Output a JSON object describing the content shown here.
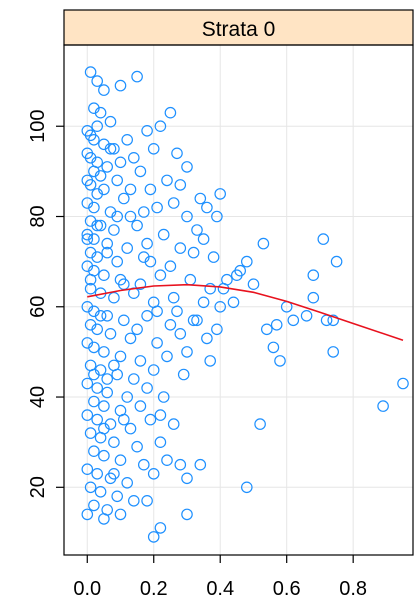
{
  "chart_data": {
    "type": "scatter",
    "title": "Strata 0",
    "xlabel": "",
    "ylabel": "",
    "xlim": [
      -0.07,
      0.98
    ],
    "ylim": [
      5,
      118
    ],
    "x_ticks": [
      0.0,
      0.2,
      0.4,
      0.6,
      0.8
    ],
    "x_tick_labels": [
      "0.0",
      "0.2",
      "0.4",
      "0.6",
      "0.8"
    ],
    "y_ticks": [
      20,
      40,
      60,
      80,
      100
    ],
    "y_tick_labels": [
      "20",
      "40",
      "60",
      "80",
      "100"
    ],
    "grid": true,
    "legend": "none",
    "colors": {
      "points": "#1E90FF",
      "fit": "#E8121E",
      "strip": "#FFE4C4",
      "grid": "#E6E6E6",
      "axis": "#000000"
    },
    "series": [
      {
        "kind": "points",
        "points": [
          [
            0.01,
            112
          ],
          [
            0.03,
            110
          ],
          [
            0.05,
            108
          ],
          [
            0.1,
            109
          ],
          [
            0.15,
            111
          ],
          [
            0.02,
            104
          ],
          [
            0.04,
            103
          ],
          [
            0.07,
            101
          ],
          [
            0.03,
            100
          ],
          [
            0.0,
            99
          ],
          [
            0.01,
            98
          ],
          [
            0.02,
            97
          ],
          [
            0.05,
            96
          ],
          [
            0.08,
            95
          ],
          [
            0.12,
            97
          ],
          [
            0.18,
            99
          ],
          [
            0.22,
            100
          ],
          [
            0.25,
            103
          ],
          [
            0.0,
            94
          ],
          [
            0.01,
            93
          ],
          [
            0.03,
            92
          ],
          [
            0.06,
            91
          ],
          [
            0.1,
            92
          ],
          [
            0.14,
            93
          ],
          [
            0.2,
            95
          ],
          [
            0.27,
            94
          ],
          [
            0.3,
            91
          ],
          [
            0.02,
            90
          ],
          [
            0.04,
            89
          ],
          [
            0.0,
            88
          ],
          [
            0.01,
            87
          ],
          [
            0.09,
            88
          ],
          [
            0.16,
            90
          ],
          [
            0.24,
            88
          ],
          [
            0.28,
            87
          ],
          [
            0.05,
            86
          ],
          [
            0.03,
            85
          ],
          [
            0.11,
            84
          ],
          [
            0.19,
            86
          ],
          [
            0.34,
            84
          ],
          [
            0.36,
            82
          ],
          [
            0.4,
            85
          ],
          [
            0.0,
            83
          ],
          [
            0.02,
            82
          ],
          [
            0.07,
            81
          ],
          [
            0.13,
            80
          ],
          [
            0.21,
            82
          ],
          [
            0.26,
            83
          ],
          [
            0.3,
            80
          ],
          [
            0.01,
            79
          ],
          [
            0.04,
            78
          ],
          [
            0.08,
            77
          ],
          [
            0.15,
            78
          ],
          [
            0.23,
            76
          ],
          [
            0.33,
            77
          ],
          [
            0.39,
            80
          ],
          [
            0.0,
            76
          ],
          [
            0.02,
            75
          ],
          [
            0.06,
            74
          ],
          [
            0.12,
            73
          ],
          [
            0.18,
            74
          ],
          [
            0.28,
            73
          ],
          [
            0.35,
            75
          ],
          [
            0.38,
            71
          ],
          [
            0.01,
            72
          ],
          [
            0.03,
            71
          ],
          [
            0.09,
            70
          ],
          [
            0.17,
            71
          ],
          [
            0.25,
            69
          ],
          [
            0.42,
            66
          ],
          [
            0.45,
            67
          ],
          [
            0.48,
            70
          ],
          [
            0.53,
            74
          ],
          [
            0.0,
            69
          ],
          [
            0.02,
            68
          ],
          [
            0.05,
            67
          ],
          [
            0.1,
            66
          ],
          [
            0.16,
            65
          ],
          [
            0.22,
            67
          ],
          [
            0.31,
            66
          ],
          [
            0.01,
            64
          ],
          [
            0.04,
            63
          ],
          [
            0.08,
            62
          ],
          [
            0.14,
            63
          ],
          [
            0.2,
            61
          ],
          [
            0.26,
            62
          ],
          [
            0.35,
            61
          ],
          [
            0.4,
            60
          ],
          [
            0.0,
            60
          ],
          [
            0.02,
            59
          ],
          [
            0.06,
            58
          ],
          [
            0.11,
            57
          ],
          [
            0.18,
            58
          ],
          [
            0.25,
            56
          ],
          [
            0.32,
            57
          ],
          [
            0.39,
            55
          ],
          [
            0.54,
            55
          ],
          [
            0.57,
            56
          ],
          [
            0.6,
            60
          ],
          [
            0.66,
            58
          ],
          [
            0.68,
            62
          ],
          [
            0.72,
            57
          ],
          [
            0.74,
            57
          ],
          [
            0.01,
            56
          ],
          [
            0.03,
            55
          ],
          [
            0.07,
            54
          ],
          [
            0.13,
            53
          ],
          [
            0.21,
            52
          ],
          [
            0.28,
            54
          ],
          [
            0.36,
            53
          ],
          [
            0.0,
            52
          ],
          [
            0.02,
            51
          ],
          [
            0.05,
            50
          ],
          [
            0.1,
            49
          ],
          [
            0.16,
            48
          ],
          [
            0.24,
            49
          ],
          [
            0.3,
            50
          ],
          [
            0.56,
            51
          ],
          [
            0.58,
            48
          ],
          [
            0.74,
            50
          ],
          [
            0.01,
            47
          ],
          [
            0.04,
            46
          ],
          [
            0.09,
            45
          ],
          [
            0.14,
            44
          ],
          [
            0.2,
            46
          ],
          [
            0.0,
            43
          ],
          [
            0.03,
            42
          ],
          [
            0.06,
            41
          ],
          [
            0.12,
            40
          ],
          [
            0.18,
            42
          ],
          [
            0.95,
            43
          ],
          [
            0.02,
            39
          ],
          [
            0.05,
            38
          ],
          [
            0.1,
            37
          ],
          [
            0.16,
            38
          ],
          [
            0.22,
            36
          ],
          [
            0.89,
            38
          ],
          [
            0.0,
            36
          ],
          [
            0.03,
            35
          ],
          [
            0.07,
            34
          ],
          [
            0.13,
            33
          ],
          [
            0.19,
            35
          ],
          [
            0.26,
            34
          ],
          [
            0.52,
            34
          ],
          [
            0.01,
            32
          ],
          [
            0.04,
            31
          ],
          [
            0.08,
            30
          ],
          [
            0.15,
            29
          ],
          [
            0.22,
            30
          ],
          [
            0.02,
            28
          ],
          [
            0.05,
            27
          ],
          [
            0.1,
            26
          ],
          [
            0.17,
            25
          ],
          [
            0.24,
            26
          ],
          [
            0.28,
            25
          ],
          [
            0.0,
            24
          ],
          [
            0.03,
            23
          ],
          [
            0.07,
            22
          ],
          [
            0.12,
            21
          ],
          [
            0.2,
            23
          ],
          [
            0.3,
            22
          ],
          [
            0.34,
            25
          ],
          [
            0.48,
            20
          ],
          [
            0.01,
            20
          ],
          [
            0.04,
            19
          ],
          [
            0.09,
            18
          ],
          [
            0.14,
            17
          ],
          [
            0.02,
            16
          ],
          [
            0.06,
            15
          ],
          [
            0.0,
            14
          ],
          [
            0.05,
            13
          ],
          [
            0.1,
            14
          ],
          [
            0.18,
            17
          ],
          [
            0.3,
            14
          ],
          [
            0.22,
            11
          ],
          [
            0.2,
            9
          ],
          [
            0.08,
            23
          ],
          [
            0.11,
            65
          ],
          [
            0.06,
            44
          ],
          [
            0.19,
            70
          ],
          [
            0.23,
            40
          ],
          [
            0.27,
            59
          ],
          [
            0.15,
            55
          ],
          [
            0.32,
            72
          ],
          [
            0.37,
            64
          ],
          [
            0.29,
            45
          ],
          [
            0.09,
            80
          ],
          [
            0.13,
            86
          ],
          [
            0.07,
            95
          ],
          [
            0.17,
            81
          ],
          [
            0.21,
            59
          ],
          [
            0.03,
            78
          ],
          [
            0.01,
            66
          ],
          [
            0.02,
            45
          ],
          [
            0.04,
            58
          ],
          [
            0.0,
            75
          ],
          [
            0.05,
            33
          ],
          [
            0.06,
            72
          ],
          [
            0.08,
            47
          ],
          [
            0.11,
            35
          ],
          [
            0.68,
            67
          ],
          [
            0.71,
            75
          ],
          [
            0.75,
            70
          ],
          [
            0.62,
            57
          ],
          [
            0.5,
            65
          ],
          [
            0.44,
            61
          ],
          [
            0.41,
            64
          ],
          [
            0.46,
            68
          ],
          [
            0.33,
            57
          ],
          [
            0.37,
            48
          ]
        ]
      },
      {
        "kind": "fit",
        "points": [
          [
            0.0,
            62.2
          ],
          [
            0.1,
            63.6
          ],
          [
            0.2,
            64.6
          ],
          [
            0.3,
            64.9
          ],
          [
            0.4,
            64.4
          ],
          [
            0.5,
            63.2
          ],
          [
            0.6,
            61.2
          ],
          [
            0.7,
            58.8
          ],
          [
            0.8,
            56.3
          ],
          [
            0.95,
            52.6
          ]
        ]
      }
    ]
  }
}
